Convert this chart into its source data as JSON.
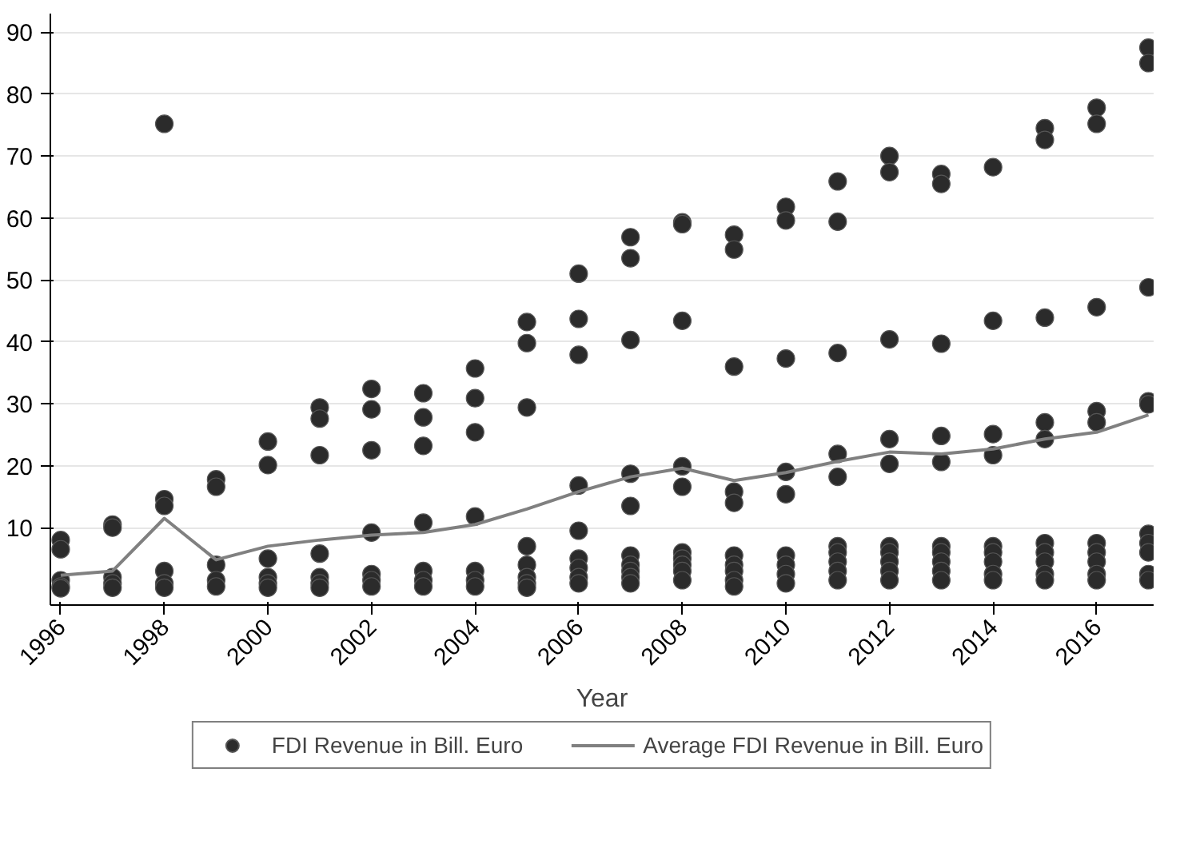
{
  "chart_data": {
    "type": "scatter",
    "xlabel": "Year",
    "xlim": [
      1995.8,
      2017.1
    ],
    "ylim": [
      -2.5,
      93
    ],
    "xticks": [
      1996,
      1998,
      2000,
      2002,
      2004,
      2006,
      2008,
      2010,
      2012,
      2014,
      2016
    ],
    "yticks": [
      10,
      20,
      30,
      40,
      50,
      60,
      70,
      80,
      90
    ],
    "grid": "y",
    "legend": "bottom",
    "series": [
      {
        "name": "FDI Revenue in Bill. Euro",
        "marker": "circle",
        "color": "#2b2b2b",
        "x": [
          1996,
          1996,
          1996,
          1996,
          1996,
          1997,
          1997,
          1997,
          1997,
          1997,
          1998,
          1998,
          1998,
          1998,
          1998,
          1998,
          1999,
          1999,
          1999,
          1999,
          1999,
          2000,
          2000,
          2000,
          2000,
          2000,
          2000,
          2001,
          2001,
          2001,
          2001,
          2001,
          2001,
          2001,
          2002,
          2002,
          2002,
          2002,
          2002,
          2002,
          2002,
          2003,
          2003,
          2003,
          2003,
          2003,
          2003,
          2003,
          2004,
          2004,
          2004,
          2004,
          2004,
          2004,
          2004,
          2005,
          2005,
          2005,
          2005,
          2005,
          2005,
          2005,
          2005,
          2006,
          2006,
          2006,
          2006,
          2006,
          2006,
          2006,
          2006,
          2006,
          2007,
          2007,
          2007,
          2007,
          2007,
          2007,
          2007,
          2007,
          2007,
          2007,
          2008,
          2008,
          2008,
          2008,
          2008,
          2008,
          2008,
          2008,
          2008,
          2008,
          2009,
          2009,
          2009,
          2009,
          2009,
          2009,
          2009,
          2009,
          2009,
          2009,
          2010,
          2010,
          2010,
          2010,
          2010,
          2010,
          2010,
          2010,
          2010,
          2011,
          2011,
          2011,
          2011,
          2011,
          2011,
          2011,
          2011,
          2011,
          2011,
          2012,
          2012,
          2012,
          2012,
          2012,
          2012,
          2012,
          2012,
          2012,
          2012,
          2013,
          2013,
          2013,
          2013,
          2013,
          2013,
          2013,
          2013,
          2013,
          2013,
          2014,
          2014,
          2014,
          2014,
          2014,
          2014,
          2014,
          2014,
          2014,
          2015,
          2015,
          2015,
          2015,
          2015,
          2015,
          2015,
          2015,
          2015,
          2015,
          2016,
          2016,
          2016,
          2016,
          2016,
          2016,
          2016,
          2016,
          2016,
          2016,
          2017,
          2017,
          2017,
          2017,
          2017,
          2017,
          2017,
          2017,
          2017,
          2017
        ],
        "values": [
          8.0,
          6.5,
          1.5,
          0.5,
          0.2,
          10.5,
          10.0,
          2.0,
          1.0,
          0.3,
          75.2,
          14.6,
          13.5,
          3.0,
          1.0,
          0.3,
          17.8,
          16.6,
          4.0,
          1.5,
          0.5,
          23.9,
          20.1,
          5.0,
          2.0,
          1.0,
          0.3,
          29.4,
          27.6,
          21.7,
          5.8,
          2.0,
          1.0,
          0.3,
          32.4,
          29.1,
          22.5,
          9.2,
          2.5,
          1.5,
          0.5,
          31.7,
          27.8,
          23.2,
          10.8,
          3.0,
          1.5,
          0.5,
          35.7,
          30.9,
          25.4,
          11.8,
          3.0,
          1.5,
          0.5,
          43.2,
          39.8,
          29.4,
          7.0,
          4.0,
          2.0,
          1.0,
          0.3,
          51.0,
          43.7,
          37.9,
          16.8,
          9.5,
          5.0,
          3.5,
          2.0,
          1.0,
          56.9,
          53.5,
          40.3,
          18.7,
          13.5,
          5.5,
          4.0,
          3.0,
          2.0,
          1.0,
          59.3,
          59.0,
          43.4,
          19.9,
          16.6,
          6.0,
          5.0,
          4.0,
          3.0,
          1.5,
          57.3,
          54.9,
          36.0,
          15.8,
          14.0,
          5.5,
          4.0,
          3.0,
          1.5,
          0.5,
          61.8,
          59.6,
          37.3,
          19.0,
          15.4,
          5.5,
          4.0,
          2.5,
          1.0,
          65.9,
          59.4,
          38.2,
          21.9,
          18.2,
          7.0,
          6.0,
          4.5,
          3.0,
          1.5,
          70.0,
          67.4,
          40.4,
          24.3,
          20.3,
          7.0,
          6.0,
          4.5,
          3.0,
          1.5,
          67.1,
          65.5,
          39.7,
          24.8,
          20.6,
          7.0,
          6.0,
          4.5,
          3.0,
          1.5,
          68.2,
          43.4,
          25.1,
          21.7,
          7.0,
          6.0,
          4.5,
          2.5,
          1.5,
          74.5,
          72.6,
          43.9,
          27.0,
          24.3,
          7.5,
          6.0,
          4.5,
          2.5,
          1.5,
          77.8,
          75.2,
          45.6,
          28.8,
          27.0,
          7.5,
          6.0,
          4.5,
          2.5,
          1.5,
          87.5,
          85.0,
          48.8,
          30.4,
          29.9,
          9.0,
          7.5,
          6.0,
          2.5,
          1.5
        ]
      },
      {
        "name": "Average FDI Revenue in Bill. Euro",
        "type": "line",
        "color": "#808080",
        "x": [
          1996,
          1997,
          1998,
          1999,
          2000,
          2001,
          2002,
          2003,
          2004,
          2005,
          2006,
          2007,
          2008,
          2009,
          2010,
          2011,
          2012,
          2013,
          2014,
          2015,
          2016,
          2017
        ],
        "values": [
          2.3,
          3.0,
          11.5,
          4.8,
          7.0,
          8.0,
          8.8,
          9.2,
          10.5,
          13.0,
          15.8,
          18.2,
          19.6,
          17.6,
          18.9,
          20.7,
          22.2,
          21.9,
          22.7,
          24.3,
          25.4,
          28.2
        ]
      }
    ]
  }
}
